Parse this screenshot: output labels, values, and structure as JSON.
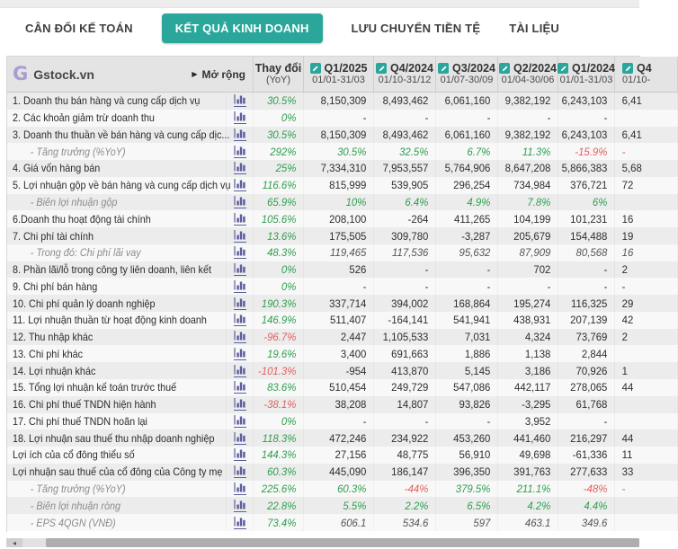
{
  "tabs": [
    {
      "label": "CÂN ĐỐI KẾ TOÁN",
      "active": false
    },
    {
      "label": "KẾT QUẢ KINH DOANH",
      "active": true
    },
    {
      "label": "LƯU CHUYỂN TIỀN TỆ",
      "active": false
    },
    {
      "label": "TÀI LIỆU",
      "active": false
    }
  ],
  "colors": {
    "accent_teal": "#2aa79a",
    "positive_green": "#2f9e4e",
    "negative_red": "#e15f5f",
    "logo_purple": "#a99dd2",
    "chart_icon_indigo": "#5c5c9e"
  },
  "table": {
    "brand": "Gstock.vn",
    "expand_label": "Mở rộng",
    "change_header_line1": "Thay đổi",
    "change_header_line2": "(YoY)",
    "quarters": [
      {
        "label": "Q1/2025",
        "range": "01/01-31/03",
        "cut": false
      },
      {
        "label": "Q4/2024",
        "range": "01/10-31/12",
        "cut": false
      },
      {
        "label": "Q3/2024",
        "range": "01/07-30/09",
        "cut": false
      },
      {
        "label": "Q2/2024",
        "range": "01/04-30/06",
        "cut": false
      },
      {
        "label": "Q1/2024",
        "range": "01/01-31/03",
        "cut": false
      },
      {
        "label": "Q4",
        "range": "01/10-",
        "cut": true
      }
    ],
    "rows": [
      {
        "label": "1. Doanh thu bán hàng và cung cấp dịch vụ",
        "sub": false,
        "yoy": [
          "30.5%",
          "g"
        ],
        "cells": [
          [
            "8,150,309",
            "d"
          ],
          [
            "8,493,462",
            "d"
          ],
          [
            "6,061,160",
            "d"
          ],
          [
            "9,382,192",
            "d"
          ],
          [
            "6,243,103",
            "d"
          ],
          [
            "6,41",
            "d"
          ]
        ]
      },
      {
        "label": "2. Các khoản giảm trừ doanh thu",
        "sub": false,
        "yoy": [
          "0%",
          "g"
        ],
        "cells": [
          [
            "-",
            "d"
          ],
          [
            "-",
            "d"
          ],
          [
            "-",
            "d"
          ],
          [
            "-",
            "d"
          ],
          [
            "-",
            "d"
          ],
          [
            "",
            ""
          ]
        ]
      },
      {
        "label": "3. Doanh thu thuần về bán hàng và cung cấp dịc...",
        "sub": false,
        "yoy": [
          "30.5%",
          "g"
        ],
        "cells": [
          [
            "8,150,309",
            "d"
          ],
          [
            "8,493,462",
            "d"
          ],
          [
            "6,061,160",
            "d"
          ],
          [
            "9,382,192",
            "d"
          ],
          [
            "6,243,103",
            "d"
          ],
          [
            "6,41",
            "d"
          ]
        ]
      },
      {
        "label": "- Tăng trưởng (%YoY)",
        "sub": true,
        "yoy": [
          "292%",
          "g"
        ],
        "cells": [
          [
            "30.5%",
            "g"
          ],
          [
            "32.5%",
            "g"
          ],
          [
            "6.7%",
            "g"
          ],
          [
            "11.3%",
            "g"
          ],
          [
            "-15.9%",
            "r"
          ],
          [
            "-",
            "r"
          ]
        ]
      },
      {
        "label": "4. Giá vốn hàng bán",
        "sub": false,
        "yoy": [
          "25%",
          "g"
        ],
        "cells": [
          [
            "7,334,310",
            "d"
          ],
          [
            "7,953,557",
            "d"
          ],
          [
            "5,764,906",
            "d"
          ],
          [
            "8,647,208",
            "d"
          ],
          [
            "5,866,383",
            "d"
          ],
          [
            "5,68",
            "d"
          ]
        ]
      },
      {
        "label": "5. Lợi nhuận gộp về bán hàng và cung cấp dịch vụ",
        "sub": false,
        "yoy": [
          "116.6%",
          "g"
        ],
        "cells": [
          [
            "815,999",
            "d"
          ],
          [
            "539,905",
            "d"
          ],
          [
            "296,254",
            "d"
          ],
          [
            "734,984",
            "d"
          ],
          [
            "376,721",
            "d"
          ],
          [
            "72",
            "d"
          ]
        ]
      },
      {
        "label": "- Biên lợi nhuận gộp",
        "sub": true,
        "yoy": [
          "65.9%",
          "g"
        ],
        "cells": [
          [
            "10%",
            "g"
          ],
          [
            "6.4%",
            "g"
          ],
          [
            "4.9%",
            "g"
          ],
          [
            "7.8%",
            "g"
          ],
          [
            "6%",
            "g"
          ],
          [
            "",
            ""
          ]
        ]
      },
      {
        "label": "6.Doanh thu hoạt động tài chính",
        "sub": false,
        "yoy": [
          "105.6%",
          "g"
        ],
        "cells": [
          [
            "208,100",
            "d"
          ],
          [
            "-264",
            "d"
          ],
          [
            "411,265",
            "d"
          ],
          [
            "104,199",
            "d"
          ],
          [
            "101,231",
            "d"
          ],
          [
            "16",
            "d"
          ]
        ]
      },
      {
        "label": "7. Chi phí tài chính",
        "sub": false,
        "yoy": [
          "13.6%",
          "g"
        ],
        "cells": [
          [
            "175,505",
            "d"
          ],
          [
            "309,780",
            "d"
          ],
          [
            "-3,287",
            "d"
          ],
          [
            "205,679",
            "d"
          ],
          [
            "154,488",
            "d"
          ],
          [
            "19",
            "d"
          ]
        ]
      },
      {
        "label": "- Trong đó: Chi phí lãi vay",
        "sub": true,
        "yoy": [
          "48.3%",
          "g"
        ],
        "cells": [
          [
            "119,465",
            "d"
          ],
          [
            "117,536",
            "d"
          ],
          [
            "95,632",
            "d"
          ],
          [
            "87,909",
            "d"
          ],
          [
            "80,568",
            "d"
          ],
          [
            "16",
            "d"
          ]
        ]
      },
      {
        "label": "8. Phần lãi/lỗ trong công ty liên doanh, liên kết",
        "sub": false,
        "yoy": [
          "0%",
          "g"
        ],
        "cells": [
          [
            "526",
            "d"
          ],
          [
            "-",
            "d"
          ],
          [
            "-",
            "d"
          ],
          [
            "702",
            "d"
          ],
          [
            "-",
            "d"
          ],
          [
            "2",
            "d"
          ]
        ]
      },
      {
        "label": "9. Chi phí bán hàng",
        "sub": false,
        "yoy": [
          "0%",
          "g"
        ],
        "cells": [
          [
            "-",
            "d"
          ],
          [
            "-",
            "d"
          ],
          [
            "-",
            "d"
          ],
          [
            "-",
            "d"
          ],
          [
            "-",
            "d"
          ],
          [
            "-",
            "d"
          ]
        ]
      },
      {
        "label": "10. Chi phí quản lý doanh nghiệp",
        "sub": false,
        "yoy": [
          "190.3%",
          "g"
        ],
        "cells": [
          [
            "337,714",
            "d"
          ],
          [
            "394,002",
            "d"
          ],
          [
            "168,864",
            "d"
          ],
          [
            "195,274",
            "d"
          ],
          [
            "116,325",
            "d"
          ],
          [
            "29",
            "d"
          ]
        ]
      },
      {
        "label": "11. Lợi nhuận thuần từ hoạt động kinh doanh",
        "sub": false,
        "yoy": [
          "146.9%",
          "g"
        ],
        "cells": [
          [
            "511,407",
            "d"
          ],
          [
            "-164,141",
            "d"
          ],
          [
            "541,941",
            "d"
          ],
          [
            "438,931",
            "d"
          ],
          [
            "207,139",
            "d"
          ],
          [
            "42",
            "d"
          ]
        ]
      },
      {
        "label": "12. Thu nhập khác",
        "sub": false,
        "yoy": [
          "-96.7%",
          "r"
        ],
        "cells": [
          [
            "2,447",
            "d"
          ],
          [
            "1,105,533",
            "d"
          ],
          [
            "7,031",
            "d"
          ],
          [
            "4,324",
            "d"
          ],
          [
            "73,769",
            "d"
          ],
          [
            "2",
            "d"
          ]
        ]
      },
      {
        "label": "13. Chi phí khác",
        "sub": false,
        "yoy": [
          "19.6%",
          "g"
        ],
        "cells": [
          [
            "3,400",
            "d"
          ],
          [
            "691,663",
            "d"
          ],
          [
            "1,886",
            "d"
          ],
          [
            "1,138",
            "d"
          ],
          [
            "2,844",
            "d"
          ],
          [
            "",
            ""
          ]
        ]
      },
      {
        "label": "14. Lợi nhuận khác",
        "sub": false,
        "yoy": [
          "-101.3%",
          "r"
        ],
        "cells": [
          [
            "-954",
            "d"
          ],
          [
            "413,870",
            "d"
          ],
          [
            "5,145",
            "d"
          ],
          [
            "3,186",
            "d"
          ],
          [
            "70,926",
            "d"
          ],
          [
            "1",
            "d"
          ]
        ]
      },
      {
        "label": "15. Tổng lợi nhuận kế toán trước thuế",
        "sub": false,
        "yoy": [
          "83.6%",
          "g"
        ],
        "cells": [
          [
            "510,454",
            "d"
          ],
          [
            "249,729",
            "d"
          ],
          [
            "547,086",
            "d"
          ],
          [
            "442,117",
            "d"
          ],
          [
            "278,065",
            "d"
          ],
          [
            "44",
            "d"
          ]
        ]
      },
      {
        "label": "16. Chi phí thuế TNDN hiện hành",
        "sub": false,
        "yoy": [
          "-38.1%",
          "r"
        ],
        "cells": [
          [
            "38,208",
            "d"
          ],
          [
            "14,807",
            "d"
          ],
          [
            "93,826",
            "d"
          ],
          [
            "-3,295",
            "d"
          ],
          [
            "61,768",
            "d"
          ],
          [
            "",
            ""
          ]
        ]
      },
      {
        "label": "17. Chi phí thuế TNDN hoãn lại",
        "sub": false,
        "yoy": [
          "0%",
          "g"
        ],
        "cells": [
          [
            "-",
            "d"
          ],
          [
            "-",
            "d"
          ],
          [
            "-",
            "d"
          ],
          [
            "3,952",
            "d"
          ],
          [
            "-",
            "d"
          ],
          [
            "",
            ""
          ]
        ]
      },
      {
        "label": "18. Lợi nhuận sau thuế thu nhập doanh nghiệp",
        "sub": false,
        "yoy": [
          "118.3%",
          "g"
        ],
        "cells": [
          [
            "472,246",
            "d"
          ],
          [
            "234,922",
            "d"
          ],
          [
            "453,260",
            "d"
          ],
          [
            "441,460",
            "d"
          ],
          [
            "216,297",
            "d"
          ],
          [
            "44",
            "d"
          ]
        ]
      },
      {
        "label": "Lợi ích của cổ đông thiểu số",
        "sub": false,
        "yoy": [
          "144.3%",
          "g"
        ],
        "cells": [
          [
            "27,156",
            "d"
          ],
          [
            "48,775",
            "d"
          ],
          [
            "56,910",
            "d"
          ],
          [
            "49,698",
            "d"
          ],
          [
            "-61,336",
            "d"
          ],
          [
            "11",
            "d"
          ]
        ]
      },
      {
        "label": "Lợi nhuận sau thuế của cổ đông của Công ty mẹ",
        "sub": false,
        "yoy": [
          "60.3%",
          "g"
        ],
        "cells": [
          [
            "445,090",
            "d"
          ],
          [
            "186,147",
            "d"
          ],
          [
            "396,350",
            "d"
          ],
          [
            "391,763",
            "d"
          ],
          [
            "277,633",
            "d"
          ],
          [
            "33",
            "d"
          ]
        ]
      },
      {
        "label": "- Tăng trưởng (%YoY)",
        "sub": true,
        "yoy": [
          "225.6%",
          "g"
        ],
        "cells": [
          [
            "60.3%",
            "g"
          ],
          [
            "-44%",
            "r"
          ],
          [
            "379.5%",
            "g"
          ],
          [
            "211.1%",
            "g"
          ],
          [
            "-48%",
            "r"
          ],
          [
            "-",
            "r"
          ]
        ]
      },
      {
        "label": "- Biên lợi nhuận ròng",
        "sub": true,
        "yoy": [
          "22.8%",
          "g"
        ],
        "cells": [
          [
            "5.5%",
            "g"
          ],
          [
            "2.2%",
            "g"
          ],
          [
            "6.5%",
            "g"
          ],
          [
            "4.2%",
            "g"
          ],
          [
            "4.4%",
            "g"
          ],
          [
            "",
            ""
          ]
        ]
      },
      {
        "label": "- EPS 4QGN (VNĐ)",
        "sub": true,
        "yoy": [
          "73.4%",
          "g"
        ],
        "cells": [
          [
            "606.1",
            "d"
          ],
          [
            "534.6",
            "d"
          ],
          [
            "597",
            "d"
          ],
          [
            "463.1",
            "d"
          ],
          [
            "349.6",
            "d"
          ],
          [
            "",
            ""
          ]
        ]
      }
    ]
  },
  "scrollbar": {
    "left_arrow": "◂"
  }
}
